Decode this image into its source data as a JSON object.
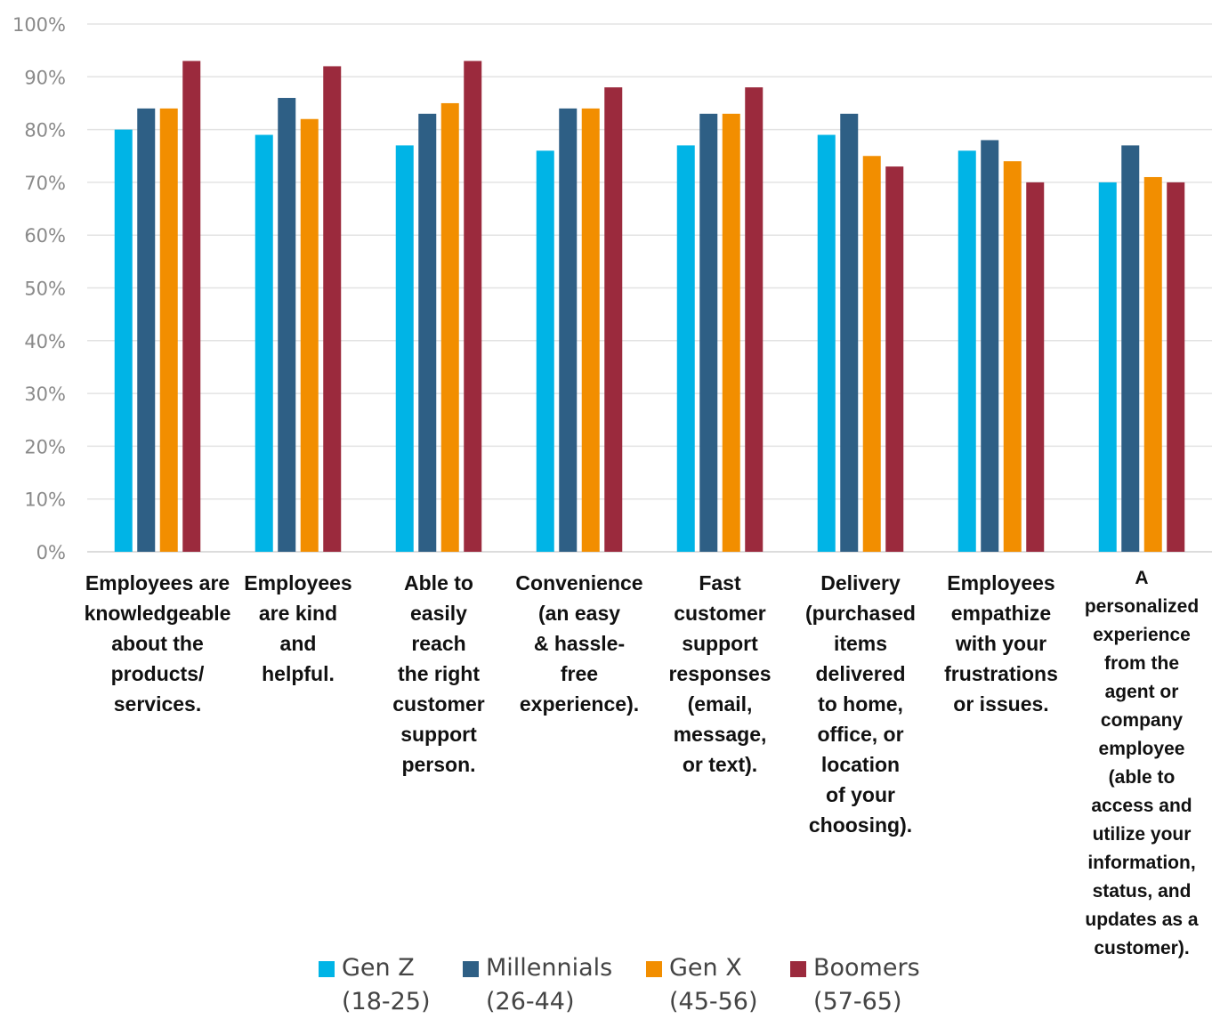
{
  "chart_data": {
    "type": "bar",
    "title": "",
    "xlabel": "",
    "ylabel": "",
    "ylim": [
      0,
      100
    ],
    "y_ticks": [
      "0%",
      "10%",
      "20%",
      "30%",
      "40%",
      "50%",
      "60%",
      "70%",
      "80%",
      "90%",
      "100%"
    ],
    "grid": true,
    "legend_position": "bottom",
    "categories": [
      "Employees are knowledgeable about the products/ services.",
      "Employees are kind and helpful.",
      "Able to easily reach the right customer support person.",
      "Convenience (an easy & hassle-free experience).",
      "Fast customer support responses (email, message, or text).",
      "Delivery (purchased items delivered to home, office, or location of your choosing).",
      "Employees empathize with your frustrations or issues.",
      "A personalized experience from the agent or company employee (able to access and utilize your information, status, and updates as a customer)."
    ],
    "series": [
      {
        "name": "Gen Z (18-25)",
        "color": "#00b4e6",
        "values": [
          80,
          79,
          77,
          76,
          77,
          79,
          76,
          70
        ]
      },
      {
        "name": "Millennials (26-44)",
        "color": "#2e5f85",
        "values": [
          84,
          86,
          83,
          84,
          83,
          83,
          78,
          77
        ]
      },
      {
        "name": "Gen X (45-56)",
        "color": "#f28e00",
        "values": [
          84,
          82,
          85,
          84,
          83,
          75,
          74,
          71
        ]
      },
      {
        "name": "Boomers (57-65)",
        "color": "#9b2a3d",
        "values": [
          93,
          92,
          93,
          88,
          88,
          73,
          70,
          70
        ]
      }
    ]
  },
  "category_label_lines": [
    [
      "Employees are",
      "knowledgeable",
      "about the",
      "products/",
      "services."
    ],
    [
      "Employees",
      "are kind",
      "and",
      "helpful."
    ],
    [
      "Able to",
      "easily",
      "reach",
      "the right",
      "customer",
      "support",
      "person."
    ],
    [
      "Convenience",
      "(an easy",
      "& hassle-",
      "free",
      "experience)."
    ],
    [
      "Fast",
      "customer",
      "support",
      "responses",
      "(email,",
      "message,",
      "or text)."
    ],
    [
      "Delivery",
      "(purchased",
      "items",
      "delivered",
      "to home,",
      "office, or",
      "location",
      "of your",
      "choosing)."
    ],
    [
      "Employees",
      "empathize",
      "with your",
      "frustrations",
      "or issues."
    ],
    [
      "A",
      "personalized",
      "experience",
      "from the",
      "agent or",
      "company",
      "employee",
      "(able to",
      "access and",
      "utilize your",
      "information,",
      "status, and",
      "updates as a",
      "customer)."
    ]
  ],
  "legend_lines": [
    [
      "Gen Z",
      "(18-25)"
    ],
    [
      "Millennials",
      "(26-44)"
    ],
    [
      "Gen X",
      "(45-56)"
    ],
    [
      "Boomers",
      "(57-65)"
    ]
  ]
}
